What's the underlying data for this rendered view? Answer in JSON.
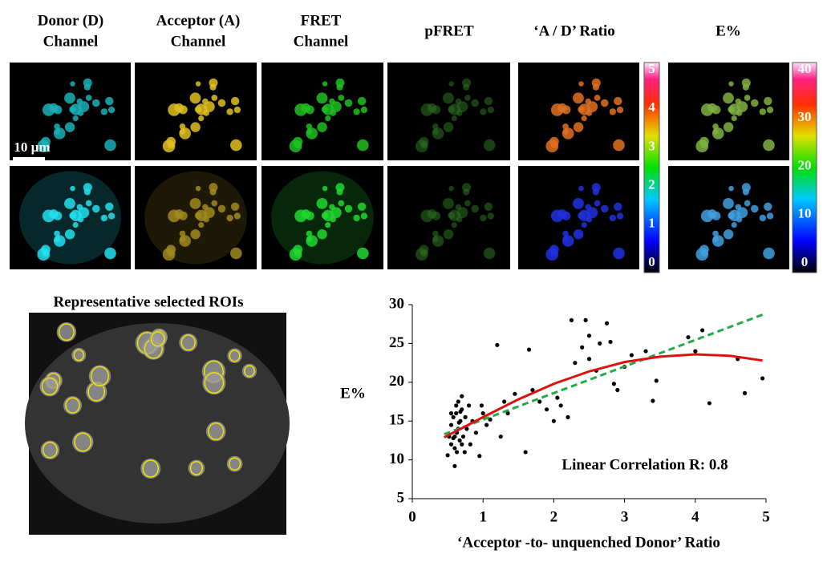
{
  "panel_headers": [
    [
      "Donor (D)",
      "Channel"
    ],
    [
      "Acceptor (A)",
      "Channel"
    ],
    [
      "FRET",
      "Channel"
    ],
    [
      "pFRET"
    ],
    [
      "‘A / D’ Ratio"
    ],
    [
      "E%"
    ]
  ],
  "scale_bar": "10 µm",
  "ratio_colorbar": [
    "5",
    "4",
    "3",
    "2",
    "1",
    "0"
  ],
  "efficiency_colorbar": [
    "40",
    "30",
    "20",
    "10",
    "0"
  ],
  "roi_title": "Representative selected ROIs",
  "chart_data": {
    "type": "scatter",
    "xlabel": "‘Acceptor -to- unquenched Donor’ Ratio",
    "ylabel": "E%",
    "annotation": "Linear Correlation R: 0.8",
    "xlim": [
      0,
      5
    ],
    "ylim": [
      5,
      30
    ],
    "xticks": [
      0,
      1,
      2,
      3,
      4,
      5
    ],
    "yticks": [
      5,
      10,
      15,
      20,
      25,
      30
    ],
    "points": {
      "color": "#000000",
      "x": [
        0.5,
        0.52,
        0.55,
        0.55,
        0.58,
        0.6,
        0.6,
        0.62,
        0.63,
        0.65,
        0.65,
        0.67,
        0.68,
        0.7,
        0.7,
        0.72,
        0.74,
        0.75,
        0.77,
        0.8,
        0.82,
        0.85,
        0.9,
        0.95,
        0.98,
        1.0,
        1.05,
        1.1,
        1.2,
        1.25,
        1.3,
        1.35,
        1.45,
        1.6,
        1.65,
        1.7,
        1.8,
        1.9,
        2.0,
        2.05,
        2.1,
        2.2,
        2.25,
        2.3,
        2.4,
        2.45,
        2.5,
        2.5,
        2.6,
        2.65,
        2.75,
        2.8,
        2.85,
        2.9,
        3.0,
        3.1,
        3.3,
        3.4,
        3.45,
        3.9,
        4.0,
        4.1,
        4.2,
        4.6,
        4.7,
        4.95,
        0.55,
        0.6,
        0.63,
        0.66,
        0.7,
        0.58,
        0.62,
        0.68
      ],
      "values": [
        10.6,
        13,
        14.5,
        12,
        15.5,
        9.2,
        11.5,
        16,
        13.5,
        17.5,
        14,
        12.5,
        15,
        18.2,
        16.5,
        13,
        11,
        15.5,
        14,
        17,
        12,
        15,
        13.5,
        10.5,
        17,
        16,
        14.5,
        15.2,
        24.8,
        13,
        17.5,
        16,
        18.5,
        11,
        24.2,
        19,
        17.5,
        16.5,
        15,
        18,
        17,
        15.5,
        28,
        22.5,
        24.5,
        28,
        26,
        23,
        21.5,
        25,
        27.6,
        25.2,
        19.8,
        19,
        22,
        23.5,
        24,
        17.6,
        20.2,
        25.8,
        24,
        26.7,
        17.3,
        23,
        18.6,
        20.5,
        16,
        13,
        11,
        14.8,
        12,
        12.8,
        17,
        16.2
      ]
    },
    "lines": [
      {
        "color": "#22aa44",
        "dashed": true,
        "x": [
          0.45,
          4.95
        ],
        "values": [
          13.3,
          28.7
        ]
      },
      {
        "color": "#dd1111",
        "dashed": false,
        "x": [
          0.45,
          1,
          1.5,
          2,
          2.5,
          3,
          3.5,
          4,
          4.5,
          4.95
        ],
        "values": [
          12.9,
          15.5,
          17.8,
          19.8,
          21.4,
          22.6,
          23.3,
          23.6,
          23.4,
          22.8
        ]
      }
    ]
  }
}
